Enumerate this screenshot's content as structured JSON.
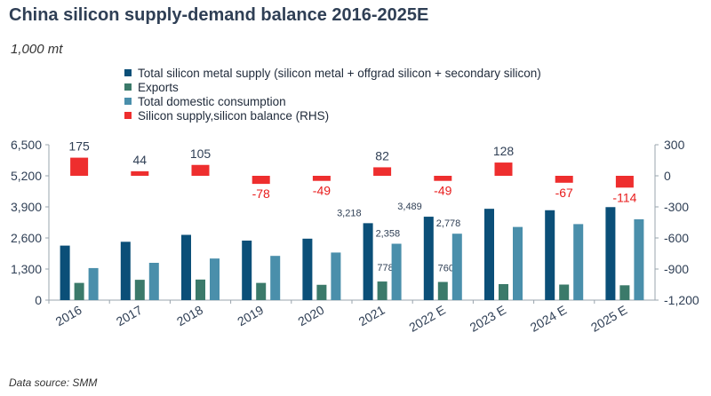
{
  "title": "China silicon supply-demand balance 2016-2025E",
  "unit_label": "1,000 mt",
  "source": "Data source: SMM",
  "colors": {
    "supply": "#0b4f78",
    "exports": "#3b7a6a",
    "consumption": "#4a8fab",
    "balance": "#ee2e2e",
    "axis": "#9aa4ad",
    "tick_text": "#2f3f55",
    "label_dark": "#2f3f55",
    "label_red": "#e81c1c"
  },
  "chart_data": {
    "type": "bar",
    "categories": [
      "2016",
      "2017",
      "2018",
      "2019",
      "2020",
      "2021",
      "2022 E",
      "2023 E",
      "2024 E",
      "2025 E"
    ],
    "series": [
      {
        "name": "Total silicon metal supply (silicon metal + offgrad silicon + secondary silicon)",
        "axis": "left",
        "values": [
          2280,
          2440,
          2730,
          2490,
          2570,
          3218,
          3489,
          3820,
          3760,
          3890
        ]
      },
      {
        "name": "Exports",
        "axis": "left",
        "values": [
          720,
          850,
          860,
          720,
          640,
          778,
          760,
          670,
          650,
          620
        ]
      },
      {
        "name": "Total domestic consumption",
        "axis": "left",
        "values": [
          1340,
          1560,
          1740,
          1850,
          1990,
          2358,
          2778,
          3060,
          3180,
          3380
        ]
      },
      {
        "name": "Silicon supply,silicon balance (RHS)",
        "axis": "right",
        "values": [
          175,
          44,
          105,
          -78,
          -49,
          82,
          -49,
          128,
          -67,
          -114
        ]
      }
    ],
    "data_labels": {
      "supply": [
        "",
        "",
        "",
        "",
        "",
        "3,218",
        "3,489",
        "",
        "",
        ""
      ],
      "exports": [
        "",
        "",
        "",
        "",
        "",
        "778",
        "760",
        "",
        "",
        ""
      ],
      "consumption": [
        "",
        "",
        "",
        "",
        "",
        "2,358",
        "2,778",
        "",
        "",
        ""
      ],
      "balance": [
        "175",
        "44",
        "105",
        "-78",
        "-49",
        "82",
        "-49",
        "128",
        "-67",
        "-114"
      ]
    },
    "ylim_left": [
      0,
      6500
    ],
    "yticks_left": [
      "0",
      "1,300",
      "2,600",
      "3,900",
      "5,200",
      "6,500"
    ],
    "ylim_right": [
      -1200,
      300
    ],
    "yticks_right": [
      "-1,200",
      "-900",
      "-600",
      "-300",
      "0",
      "300"
    ],
    "grid": false,
    "legend_position": "top"
  }
}
